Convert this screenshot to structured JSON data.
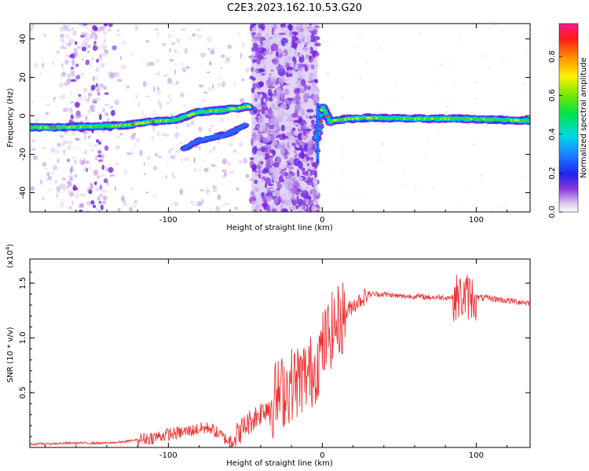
{
  "title": "C2E3.2023.162.10.53.G20",
  "chart_data": [
    {
      "type": "heatmap",
      "xlabel": "Height of straight line (km)",
      "ylabel": "Frequency (Hz)",
      "xlim": [
        -190,
        135
      ],
      "ylim": [
        -50,
        48
      ],
      "x_ticks": [
        "-100",
        "0",
        "100"
      ],
      "x_tick_values": [
        -100,
        0,
        100
      ],
      "y_ticks": [
        "-40",
        "-20",
        "0",
        "20",
        "40"
      ],
      "y_tick_values": [
        -40,
        -20,
        0,
        20,
        40
      ],
      "colorbar": {
        "label": "Normalized spectral amplitude",
        "range": [
          0,
          0.97
        ],
        "ticks": [
          "0.0",
          "0.2",
          "0.4",
          "0.6",
          "0.8"
        ],
        "tick_values": [
          0.0,
          0.2,
          0.4,
          0.6,
          0.8
        ]
      },
      "main_ridge": {
        "x": [
          -190,
          -170,
          -150,
          -130,
          -110,
          -95,
          -80,
          -65,
          -55,
          -48,
          -8,
          -3,
          0,
          5,
          10,
          30,
          60,
          90,
          110,
          135
        ],
        "y": [
          -6,
          -6,
          -5.5,
          -5,
          -3,
          -2,
          2,
          3,
          4,
          5,
          -20,
          -10,
          5,
          -3,
          -2,
          -1,
          -1.5,
          -1.5,
          -2,
          -2.5
        ]
      },
      "secondary_ridge": {
        "x": [
          -90,
          -80,
          -70,
          -60,
          -50
        ],
        "y": [
          -17,
          -13,
          -11,
          -9,
          -5
        ]
      }
    },
    {
      "type": "line",
      "xlabel": "Height of straight line (km)",
      "ylabel": "SNR (10 * v/v)",
      "y_multiplier": "(x10",
      "y_multiplier_exp": "4",
      "y_multiplier_close": ")",
      "xlim": [
        -190,
        135
      ],
      "ylim": [
        0,
        1.72
      ],
      "x_ticks": [
        "-100",
        "0",
        "100"
      ],
      "x_tick_values": [
        -100,
        0,
        100
      ],
      "y_ticks": [
        "0.5",
        "1.0",
        "1.5"
      ],
      "y_tick_values": [
        0.5,
        1.0,
        1.5
      ],
      "line_color": "#ee3333",
      "series": [
        {
          "x": [
            -190,
            -160,
            -140,
            -130,
            -120,
            -110,
            -100,
            -90,
            -80,
            -73,
            -65,
            -60,
            -55,
            -50,
            -45,
            -40,
            -35,
            -30,
            -25,
            -20,
            -15,
            -10,
            -5,
            0,
            5,
            10,
            15,
            20,
            25,
            30,
            40,
            50,
            60,
            70,
            80,
            85,
            90,
            95,
            100,
            110,
            120,
            135
          ],
          "y": [
            0.03,
            0.04,
            0.04,
            0.05,
            0.07,
            0.09,
            0.12,
            0.14,
            0.17,
            0.18,
            0.1,
            0.05,
            0.12,
            0.2,
            0.26,
            0.32,
            0.38,
            0.46,
            0.52,
            0.58,
            0.62,
            0.66,
            0.72,
            0.9,
            1.05,
            1.14,
            1.22,
            1.3,
            1.35,
            1.4,
            1.4,
            1.38,
            1.38,
            1.37,
            1.37,
            1.37,
            1.37,
            1.38,
            1.37,
            1.36,
            1.34,
            1.32
          ]
        }
      ]
    }
  ]
}
